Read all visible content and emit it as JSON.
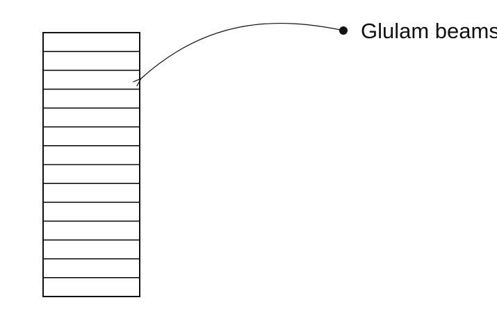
{
  "diagram": {
    "label": "Glulam beams",
    "lamination_count": 14,
    "line_color": "#111111"
  }
}
